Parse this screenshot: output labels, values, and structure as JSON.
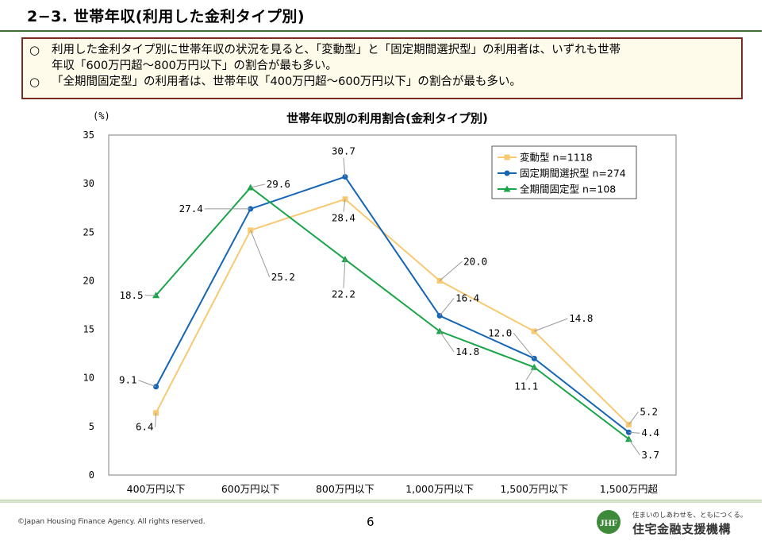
{
  "page": {
    "title": "2−3. 世帯年収(利用した金利タイプ別)",
    "bullet_mark": "○",
    "bullets": [
      {
        "line1": "利用した金利タイプ別に世帯年収の状況を見ると、「変動型」と「固定期間選択型」の利用者は、いずれも世帯",
        "line2": "年収「600万円超〜800万円以下」の割合が最も多い。"
      },
      {
        "line1": "「全期間固定型」の利用者は、世帯年収「400万円超〜600万円以下」の割合が最も多い。"
      }
    ],
    "page_number": "6",
    "copyright": "©Japan Housing Finance Agency. All rights reserved.",
    "org_slogan": "住まいのしあわせを、ともにつくる。",
    "org_name": "住宅金融支援機構",
    "logo_text": "JHF"
  },
  "chart_data": {
    "type": "line",
    "title": "世帯年収別の利用割合(金利タイプ別)",
    "ylabel": "(%)",
    "xlabel": "",
    "ylim": [
      0,
      35
    ],
    "yticks": [
      0,
      5,
      10,
      15,
      20,
      25,
      30,
      35
    ],
    "grid": false,
    "legend_position": "top-right",
    "categories": [
      "400万円以下",
      "600万円以下",
      "800万円以下",
      "1,000万円以下",
      "1,500万円以下",
      "1,500万円超"
    ],
    "series": [
      {
        "name": "変動型 n=1118",
        "color": "#f8c970",
        "marker": "square",
        "values": [
          6.4,
          25.2,
          28.4,
          20.0,
          14.8,
          5.2
        ],
        "labels": [
          "6.4",
          "25.2",
          "28.4",
          "20.0",
          "14.8",
          "5.2"
        ]
      },
      {
        "name": "固定期間選択型 n=274",
        "color": "#1565b7",
        "marker": "circle",
        "values": [
          9.1,
          27.4,
          30.7,
          16.4,
          12.0,
          4.4
        ],
        "labels": [
          "9.1",
          "27.4",
          "30.7",
          "16.4",
          "12.0",
          "4.4"
        ]
      },
      {
        "name": "全期間固定型 n=108",
        "color": "#1aa54a",
        "marker": "triangle",
        "values": [
          18.5,
          29.6,
          22.2,
          14.8,
          11.1,
          3.7
        ],
        "labels": [
          "18.5",
          "29.6",
          "22.2",
          "14.8",
          "11.1",
          "3.7"
        ]
      }
    ]
  }
}
